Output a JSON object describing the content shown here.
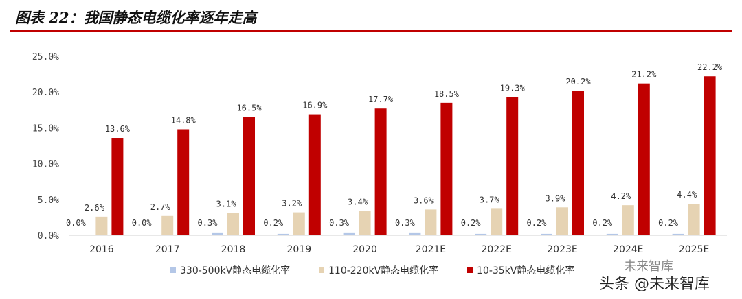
{
  "header": {
    "title": "图表 22：我国静态电缆化率逐年走高"
  },
  "watermark": {
    "logo_text": "未来智库",
    "text": "头条 @未来智库"
  },
  "colors": {
    "series_330": "#b4c7e7",
    "series_110": "#e6d3b3",
    "series_10": "#c00000",
    "title_rule": "#c00000"
  },
  "chart_data": {
    "type": "bar",
    "title": "",
    "xlabel": "",
    "ylabel": "",
    "ylim": [
      0,
      25
    ],
    "yticks": [
      "0.0%",
      "5.0%",
      "10.0%",
      "15.0%",
      "20.0%",
      "25.0%"
    ],
    "grid": false,
    "legend_position": "bottom",
    "categories": [
      "2016",
      "2017",
      "2018",
      "2019",
      "2020",
      "2021E",
      "2022E",
      "2023E",
      "2024E",
      "2025E"
    ],
    "series": [
      {
        "name": "330-500kV静态电缆化率",
        "color": "#b4c7e7",
        "values": [
          0.0,
          0.0,
          0.3,
          0.2,
          0.3,
          0.3,
          0.2,
          0.2,
          0.2,
          0.2
        ],
        "labels": [
          "0.0%",
          "0.0%",
          "0.3%",
          "0.2%",
          "0.3%",
          "0.3%",
          "0.2%",
          "0.2%",
          "0.2%",
          "0.2%"
        ]
      },
      {
        "name": "110-220kV静态电缆化率",
        "color": "#e6d3b3",
        "values": [
          2.6,
          2.7,
          3.1,
          3.2,
          3.4,
          3.6,
          3.7,
          3.9,
          4.2,
          4.4
        ],
        "labels": [
          "2.6%",
          "2.7%",
          "3.1%",
          "3.2%",
          "3.4%",
          "3.6%",
          "3.7%",
          "3.9%",
          "4.2%",
          "4.4%"
        ]
      },
      {
        "name": "10-35kV静态电缆化率",
        "color": "#c00000",
        "values": [
          13.6,
          14.8,
          16.5,
          16.9,
          17.7,
          18.5,
          19.3,
          20.2,
          21.2,
          22.2
        ],
        "labels": [
          "13.6%",
          "14.8%",
          "16.5%",
          "16.9%",
          "17.7%",
          "18.5%",
          "19.3%",
          "20.2%",
          "21.2%",
          "22.2%"
        ]
      }
    ]
  }
}
